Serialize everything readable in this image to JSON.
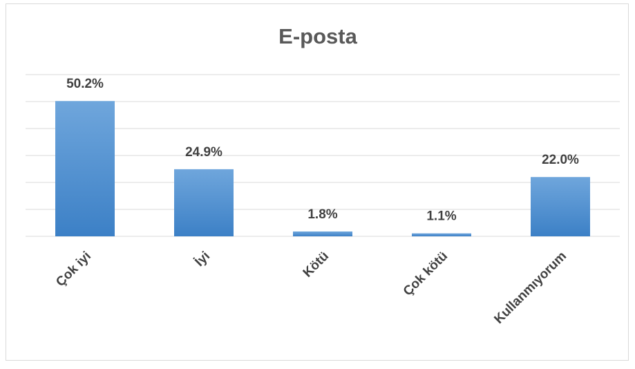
{
  "chart_data": {
    "type": "bar",
    "title": "E-posta",
    "categories": [
      "Çok iyi",
      "İyi",
      "Kötü",
      "Çok kötü",
      "Kullanmıyorum"
    ],
    "values": [
      50.2,
      24.9,
      1.8,
      1.1,
      22.0
    ],
    "value_labels": [
      "50.2%",
      "24.9%",
      "1.8%",
      "1.1%",
      "22.0%"
    ],
    "color": "#5b9bd5",
    "ylim": [
      0,
      60
    ],
    "yticks": [
      0,
      10,
      20,
      30,
      40,
      50,
      60
    ],
    "grid": true
  }
}
